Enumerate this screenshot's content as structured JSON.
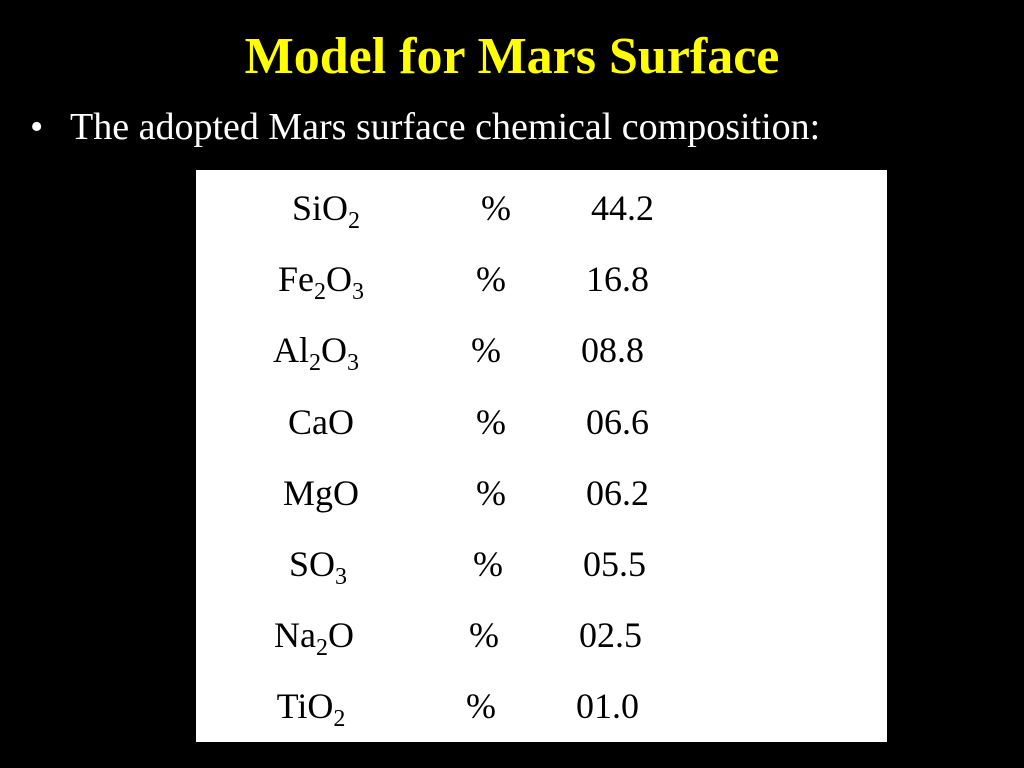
{
  "header": {
    "title": "Model for Mars Surface"
  },
  "bullets": [
    "The adopted Mars surface chemical composition:"
  ],
  "table": {
    "rows": [
      {
        "formula": [
          {
            "text": "SiO"
          },
          {
            "text": "2",
            "sub": true
          }
        ],
        "unit": "%",
        "value": "44.2"
      },
      {
        "formula": [
          {
            "text": "Fe"
          },
          {
            "text": "2",
            "sub": true
          },
          {
            "text": "O"
          },
          {
            "text": "3",
            "sub": true
          }
        ],
        "unit": "%",
        "value": "16.8"
      },
      {
        "formula": [
          {
            "text": "Al"
          },
          {
            "text": "2",
            "sub": true
          },
          {
            "text": "O"
          },
          {
            "text": "3",
            "sub": true
          }
        ],
        "unit": "%",
        "value": "08.8"
      },
      {
        "formula": [
          {
            "text": "CaO"
          }
        ],
        "unit": "%",
        "value": "06.6"
      },
      {
        "formula": [
          {
            "text": "MgO"
          }
        ],
        "unit": "%",
        "value": "06.2"
      },
      {
        "formula": [
          {
            "text": "SO"
          },
          {
            "text": "3",
            "sub": true
          }
        ],
        "unit": "%",
        "value": "05.5"
      },
      {
        "formula": [
          {
            "text": "Na"
          },
          {
            "text": "2",
            "sub": true
          },
          {
            "text": "O"
          }
        ],
        "unit": "%",
        "value": "02.5"
      },
      {
        "formula": [
          {
            "text": "TiO"
          },
          {
            "text": "2",
            "sub": true
          }
        ],
        "unit": "%",
        "value": "01.0"
      }
    ]
  }
}
